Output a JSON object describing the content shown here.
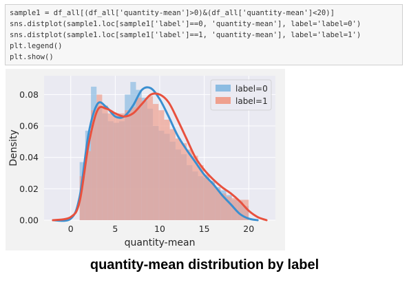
{
  "code_cell": {
    "lines": [
      "sample1 = df_all[(df_all['quantity-mean']>0)&(df_all['quantity-mean']<20)]",
      "sns.distplot(sample1.loc[sample1['label']==0, 'quantity-mean'], label='label=0')",
      "sns.distplot(sample1.loc[sample1['label']==1, 'quantity-mean'], label='label=1')",
      "plt.legend()",
      "plt.show()"
    ]
  },
  "chart_data": {
    "type": "histogram-kde",
    "style": "seaborn-darkgrid",
    "xlabel": "quantity-mean",
    "ylabel": "Density",
    "xlim": [
      -3,
      23
    ],
    "ylim": [
      0,
      0.092
    ],
    "xticks": [
      0,
      5,
      10,
      15,
      20
    ],
    "yticks": [
      0.0,
      0.02,
      0.04,
      0.06,
      0.08
    ],
    "ytick_labels": [
      "0.00",
      "0.02",
      "0.04",
      "0.06",
      "0.08"
    ],
    "grid": true,
    "legend_position": "top-right",
    "bin_edges": [
      1.0,
      1.63,
      2.27,
      2.9,
      3.53,
      4.17,
      4.8,
      5.43,
      6.07,
      6.7,
      7.33,
      7.97,
      8.6,
      9.23,
      9.87,
      10.5,
      11.13,
      11.77,
      12.4,
      13.03,
      13.67,
      14.3,
      14.93,
      15.57,
      16.2,
      16.83,
      17.47,
      18.1,
      18.73,
      19.37,
      20.0
    ],
    "series": [
      {
        "name": "label=0",
        "color": "#3a8fd0",
        "hist_color": "#8cbce2",
        "hist": [
          0.037,
          0.057,
          0.085,
          0.073,
          0.068,
          0.063,
          0.062,
          0.063,
          0.08,
          0.088,
          0.083,
          0.078,
          0.071,
          0.06,
          0.057,
          0.055,
          0.05,
          0.045,
          0.042,
          0.035,
          0.031,
          0.028,
          0.027,
          0.025,
          0.021,
          0.019,
          0.016,
          0.013,
          0.012,
          0.009
        ],
        "kde": [
          [
            -2.0,
            0.0
          ],
          [
            0.0,
            0.001
          ],
          [
            1.0,
            0.015
          ],
          [
            2.0,
            0.055
          ],
          [
            3.0,
            0.074
          ],
          [
            4.0,
            0.072
          ],
          [
            5.0,
            0.066
          ],
          [
            6.0,
            0.066
          ],
          [
            7.0,
            0.073
          ],
          [
            8.0,
            0.083
          ],
          [
            9.0,
            0.084
          ],
          [
            10.0,
            0.077
          ],
          [
            11.0,
            0.066
          ],
          [
            12.0,
            0.054
          ],
          [
            13.0,
            0.045
          ],
          [
            14.0,
            0.037
          ],
          [
            15.0,
            0.029
          ],
          [
            16.0,
            0.023
          ],
          [
            17.0,
            0.016
          ],
          [
            18.0,
            0.01
          ],
          [
            19.0,
            0.004
          ],
          [
            20.0,
            0.001
          ],
          [
            21.0,
            0.0
          ]
        ]
      },
      {
        "name": "label=1",
        "color": "#e8513e",
        "hist_color": "#efa08e",
        "hist": [
          0.028,
          0.044,
          0.07,
          0.08,
          0.073,
          0.068,
          0.068,
          0.068,
          0.07,
          0.072,
          0.078,
          0.076,
          0.079,
          0.074,
          0.07,
          0.064,
          0.058,
          0.052,
          0.049,
          0.045,
          0.041,
          0.035,
          0.029,
          0.024,
          0.02,
          0.017,
          0.015,
          0.014,
          0.013,
          0.013
        ],
        "kde": [
          [
            -2.0,
            0.0
          ],
          [
            0.0,
            0.002
          ],
          [
            1.0,
            0.012
          ],
          [
            2.0,
            0.048
          ],
          [
            3.0,
            0.07
          ],
          [
            4.0,
            0.071
          ],
          [
            5.0,
            0.068
          ],
          [
            6.0,
            0.066
          ],
          [
            7.0,
            0.068
          ],
          [
            8.0,
            0.074
          ],
          [
            9.0,
            0.08
          ],
          [
            10.0,
            0.08
          ],
          [
            11.0,
            0.075
          ],
          [
            12.0,
            0.064
          ],
          [
            13.0,
            0.052
          ],
          [
            14.0,
            0.04
          ],
          [
            15.0,
            0.032
          ],
          [
            16.0,
            0.026
          ],
          [
            17.0,
            0.021
          ],
          [
            18.0,
            0.017
          ],
          [
            19.0,
            0.012
          ],
          [
            20.0,
            0.006
          ],
          [
            21.0,
            0.002
          ],
          [
            22.0,
            0.0
          ]
        ]
      }
    ]
  },
  "caption": "quantity-mean distribution by label"
}
